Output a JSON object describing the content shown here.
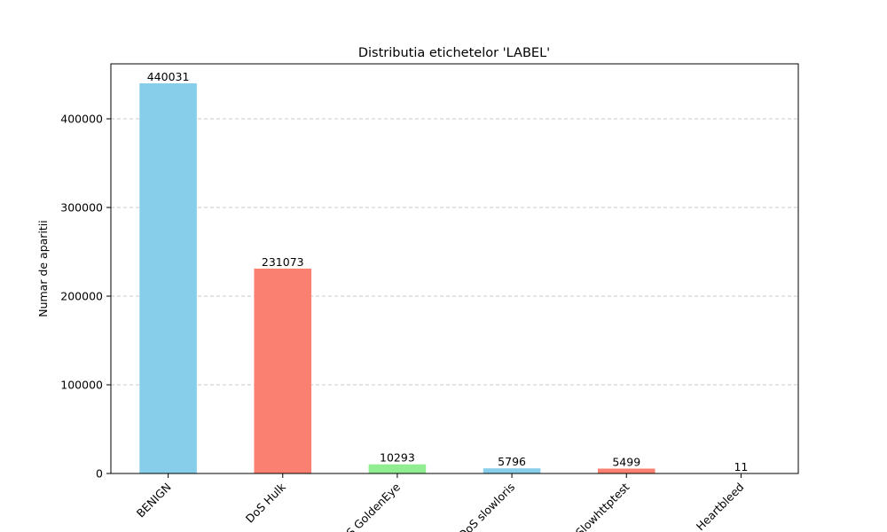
{
  "chart_data": {
    "type": "bar",
    "title": "Distributia etichetelor 'LABEL'",
    "xlabel": "",
    "ylabel": "Numar de aparitii",
    "categories": [
      "BENIGN",
      "DoS Hulk",
      "DoS GoldenEye",
      "DoS slowloris",
      "DoS Slowhttptest",
      "Heartbleed"
    ],
    "values": [
      440031,
      231073,
      10293,
      5796,
      5499,
      11
    ],
    "value_labels": [
      "440031",
      "231073",
      "10293",
      "5796",
      "5499",
      "11"
    ],
    "colors": [
      "#87ceeb",
      "#fa8072",
      "#90ee90",
      "#87ceeb",
      "#fa8072",
      "#90ee90"
    ],
    "ylim": [
      0,
      462000
    ],
    "yticks": [
      0,
      100000,
      200000,
      300000,
      400000
    ],
    "ytick_labels": [
      "0",
      "100000",
      "200000",
      "300000",
      "400000"
    ],
    "grid": "y-dashed",
    "legend": "none"
  }
}
